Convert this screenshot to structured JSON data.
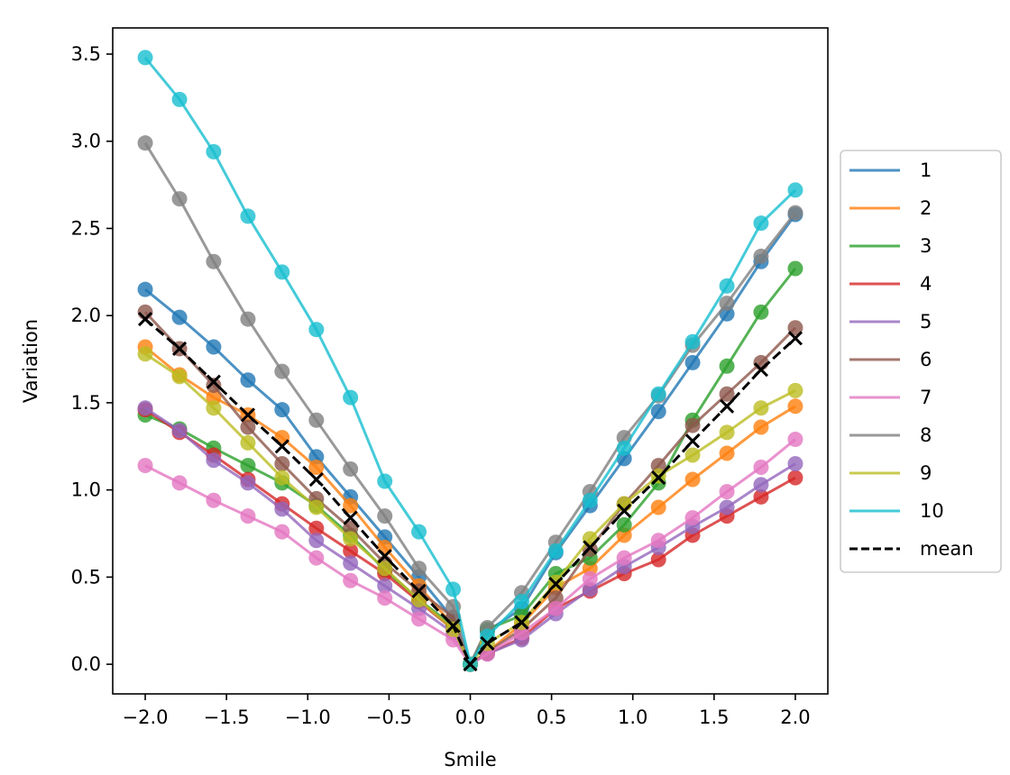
{
  "chart_data": {
    "type": "line",
    "title": "",
    "xlabel": "Smile",
    "ylabel": "Variation",
    "xlim": [
      -2.2,
      2.2
    ],
    "ylim": [
      -0.17,
      3.65
    ],
    "xticks": [
      -2.0,
      -1.5,
      -1.0,
      -0.5,
      0.0,
      0.5,
      1.0,
      1.5,
      2.0
    ],
    "xtick_labels": [
      "−2.0",
      "−1.5",
      "−1.0",
      "−0.5",
      "0.0",
      "0.5",
      "1.0",
      "1.5",
      "2.0"
    ],
    "yticks": [
      0.0,
      0.5,
      1.0,
      1.5,
      2.0,
      2.5,
      3.0,
      3.5
    ],
    "ytick_labels": [
      "0.0",
      "0.5",
      "1.0",
      "1.5",
      "2.0",
      "2.5",
      "3.0",
      "3.5"
    ],
    "grid": false,
    "legend_position": "center-right outside",
    "x": [
      -2.0,
      -1.789,
      -1.579,
      -1.368,
      -1.158,
      -0.947,
      -0.737,
      -0.526,
      -0.316,
      -0.105,
      0.0,
      0.105,
      0.316,
      0.526,
      0.737,
      0.947,
      1.158,
      1.368,
      1.579,
      1.789,
      2.0
    ],
    "series": [
      {
        "name": "1",
        "color": "#1f77b4",
        "values": [
          2.15,
          1.99,
          1.82,
          1.63,
          1.46,
          1.19,
          0.96,
          0.73,
          0.5,
          0.26,
          0.0,
          0.19,
          0.32,
          0.64,
          0.91,
          1.18,
          1.45,
          1.73,
          2.01,
          2.31,
          2.58
        ]
      },
      {
        "name": "2",
        "color": "#ff7f0e",
        "values": [
          1.82,
          1.66,
          1.53,
          1.43,
          1.3,
          1.13,
          0.91,
          0.67,
          0.45,
          0.22,
          0.0,
          0.07,
          0.23,
          0.44,
          0.55,
          0.74,
          0.9,
          1.06,
          1.21,
          1.36,
          1.48
        ]
      },
      {
        "name": "3",
        "color": "#2ca02c",
        "values": [
          1.43,
          1.35,
          1.24,
          1.14,
          1.04,
          0.91,
          0.74,
          0.54,
          0.37,
          0.22,
          0.0,
          0.2,
          0.28,
          0.52,
          0.61,
          0.8,
          1.04,
          1.4,
          1.71,
          2.02,
          2.27
        ]
      },
      {
        "name": "4",
        "color": "#d62728",
        "values": [
          1.46,
          1.33,
          1.2,
          1.06,
          0.92,
          0.78,
          0.65,
          0.52,
          0.36,
          0.2,
          0.0,
          0.06,
          0.15,
          0.32,
          0.42,
          0.52,
          0.6,
          0.74,
          0.85,
          0.96,
          1.07
        ]
      },
      {
        "name": "5",
        "color": "#9467bd",
        "values": [
          1.47,
          1.34,
          1.17,
          1.04,
          0.89,
          0.71,
          0.58,
          0.45,
          0.32,
          0.18,
          0.0,
          0.06,
          0.14,
          0.29,
          0.43,
          0.56,
          0.67,
          0.79,
          0.9,
          1.03,
          1.15
        ]
      },
      {
        "name": "6",
        "color": "#8c564b",
        "values": [
          2.02,
          1.81,
          1.6,
          1.36,
          1.15,
          0.95,
          0.78,
          0.58,
          0.42,
          0.27,
          0.0,
          0.07,
          0.2,
          0.38,
          0.66,
          0.92,
          1.14,
          1.37,
          1.55,
          1.73,
          1.93
        ]
      },
      {
        "name": "7",
        "color": "#e377c2",
        "values": [
          1.14,
          1.04,
          0.94,
          0.85,
          0.76,
          0.61,
          0.48,
          0.38,
          0.26,
          0.14,
          0.0,
          0.06,
          0.18,
          0.32,
          0.49,
          0.61,
          0.71,
          0.84,
          0.99,
          1.13,
          1.29
        ]
      },
      {
        "name": "8",
        "color": "#7f7f7f",
        "values": [
          2.99,
          2.67,
          2.31,
          1.98,
          1.68,
          1.4,
          1.12,
          0.85,
          0.55,
          0.33,
          0.0,
          0.21,
          0.41,
          0.7,
          0.99,
          1.3,
          1.54,
          1.83,
          2.07,
          2.34,
          2.59
        ]
      },
      {
        "name": "9",
        "color": "#bcbd22",
        "values": [
          1.78,
          1.65,
          1.47,
          1.27,
          1.07,
          0.9,
          0.72,
          0.55,
          0.37,
          0.2,
          0.0,
          0.12,
          0.24,
          0.47,
          0.72,
          0.92,
          1.08,
          1.2,
          1.33,
          1.47,
          1.57
        ]
      },
      {
        "name": "10",
        "color": "#17becf",
        "values": [
          3.48,
          3.24,
          2.94,
          2.57,
          2.25,
          1.92,
          1.53,
          1.05,
          0.76,
          0.43,
          0.0,
          0.16,
          0.36,
          0.65,
          0.94,
          1.24,
          1.55,
          1.85,
          2.17,
          2.53,
          2.72
        ]
      }
    ],
    "mean": {
      "name": "mean",
      "color": "#000000",
      "values": [
        1.98,
        1.81,
        1.62,
        1.43,
        1.25,
        1.06,
        0.84,
        0.62,
        0.42,
        0.22,
        0.0,
        0.12,
        0.24,
        0.46,
        0.67,
        0.88,
        1.07,
        1.28,
        1.48,
        1.69,
        1.87
      ]
    }
  }
}
